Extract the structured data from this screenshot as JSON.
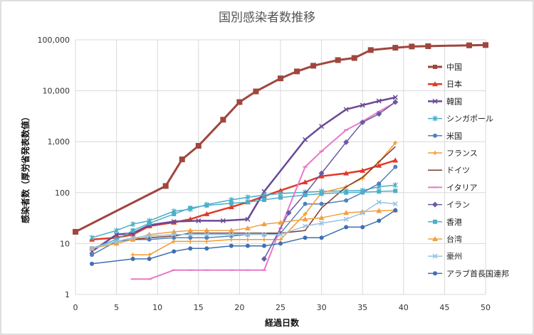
{
  "chart_data": {
    "type": "line",
    "title": "国別感染者数推移",
    "xlabel": "経過日数",
    "ylabel": "感染者数（厚労省発表数値）",
    "xlim": [
      0,
      50
    ],
    "ylim": [
      1,
      100000
    ],
    "y_scale": "log",
    "grid": true,
    "legend_position": "right",
    "x_ticks": [
      "0",
      "5",
      "10",
      "15",
      "20",
      "25",
      "30",
      "35",
      "40",
      "45",
      "50"
    ],
    "y_ticks": [
      "1",
      "10",
      "100",
      "1,000",
      "10,000",
      "100,000"
    ],
    "series": [
      {
        "name": "中国",
        "color": "#a0463e",
        "marker": "square",
        "width": 3,
        "points": [
          [
            0,
            17
          ],
          [
            11,
            135
          ],
          [
            13,
            450
          ],
          [
            15,
            830
          ],
          [
            18,
            2700
          ],
          [
            20,
            6000
          ],
          [
            22,
            9700
          ],
          [
            25,
            17500
          ],
          [
            27,
            24000
          ],
          [
            29,
            31000
          ],
          [
            32,
            40000
          ],
          [
            34,
            44000
          ],
          [
            36,
            63000
          ],
          [
            39,
            70000
          ],
          [
            41,
            74000
          ],
          [
            43,
            75000
          ],
          [
            48,
            78000
          ],
          [
            50,
            79000
          ]
        ]
      },
      {
        "name": "日本",
        "color": "#e03a2a",
        "marker": "triangle",
        "width": 2.5,
        "points": [
          [
            2,
            12
          ],
          [
            5,
            13
          ],
          [
            7,
            15
          ],
          [
            9,
            22
          ],
          [
            12,
            26
          ],
          [
            14,
            30
          ],
          [
            16,
            38
          ],
          [
            19,
            52
          ],
          [
            21,
            65
          ],
          [
            23,
            85
          ],
          [
            25,
            110
          ],
          [
            28,
            160
          ],
          [
            30,
            210
          ],
          [
            33,
            240
          ],
          [
            35,
            270
          ],
          [
            37,
            340
          ],
          [
            39,
            430
          ]
        ]
      },
      {
        "name": "韓国",
        "color": "#6a4a96",
        "marker": "x",
        "width": 2.5,
        "points": [
          [
            2,
            7
          ],
          [
            5,
            15
          ],
          [
            7,
            16
          ],
          [
            9,
            23
          ],
          [
            12,
            27
          ],
          [
            15,
            28
          ],
          [
            18,
            28
          ],
          [
            21,
            30
          ],
          [
            23,
            105
          ],
          [
            28,
            1100
          ],
          [
            30,
            2000
          ],
          [
            33,
            4300
          ],
          [
            35,
            5200
          ],
          [
            37,
            6300
          ],
          [
            39,
            7400
          ]
        ]
      },
      {
        "name": "シンガポール",
        "color": "#4aacc6",
        "marker": "star",
        "width": 1.5,
        "points": [
          [
            2,
            13
          ],
          [
            5,
            18
          ],
          [
            7,
            24
          ],
          [
            9,
            28
          ],
          [
            12,
            43
          ],
          [
            14,
            47
          ],
          [
            16,
            58
          ],
          [
            19,
            72
          ],
          [
            21,
            81
          ],
          [
            23,
            89
          ],
          [
            25,
            96
          ],
          [
            28,
            102
          ],
          [
            30,
            106
          ],
          [
            33,
            108
          ],
          [
            35,
            110
          ],
          [
            37,
            130
          ],
          [
            39,
            140
          ]
        ]
      },
      {
        "name": "米国",
        "color": "#4f81bd",
        "marker": "circle",
        "width": 1.5,
        "points": [
          [
            2,
            6
          ],
          [
            5,
            11
          ],
          [
            7,
            12
          ],
          [
            9,
            12
          ],
          [
            12,
            13
          ],
          [
            14,
            13
          ],
          [
            16,
            13
          ],
          [
            19,
            14
          ],
          [
            21,
            15
          ],
          [
            23,
            15
          ],
          [
            25,
            16
          ],
          [
            28,
            60
          ],
          [
            30,
            60
          ],
          [
            33,
            70
          ],
          [
            35,
            100
          ],
          [
            37,
            150
          ],
          [
            39,
            320
          ]
        ]
      },
      {
        "name": "フランス",
        "color": "#f39a2f",
        "marker": "plus",
        "width": 1.5,
        "points": [
          [
            7,
            6
          ],
          [
            9,
            6
          ],
          [
            12,
            11
          ],
          [
            14,
            11
          ],
          [
            16,
            11
          ],
          [
            19,
            12
          ],
          [
            21,
            12
          ],
          [
            23,
            12
          ],
          [
            25,
            12
          ],
          [
            28,
            38
          ],
          [
            30,
            100
          ],
          [
            33,
            130
          ],
          [
            35,
            190
          ],
          [
            37,
            400
          ],
          [
            39,
            950
          ]
        ]
      },
      {
        "name": "ドイツ",
        "color": "#7a3b2e",
        "marker": "none",
        "width": 1.5,
        "points": [
          [
            7,
            12
          ],
          [
            9,
            13
          ],
          [
            12,
            14
          ],
          [
            14,
            16
          ],
          [
            16,
            16
          ],
          [
            19,
            16
          ],
          [
            21,
            16
          ],
          [
            23,
            16
          ],
          [
            25,
            16
          ],
          [
            28,
            18
          ],
          [
            30,
            50
          ],
          [
            33,
            130
          ],
          [
            35,
            200
          ],
          [
            37,
            400
          ],
          [
            39,
            800
          ]
        ]
      },
      {
        "name": "イタリア",
        "color": "#e879c8",
        "marker": "dash",
        "width": 2,
        "points": [
          [
            7,
            2
          ],
          [
            9,
            2
          ],
          [
            12,
            3
          ],
          [
            14,
            3
          ],
          [
            16,
            3
          ],
          [
            19,
            3
          ],
          [
            21,
            3
          ],
          [
            23,
            3
          ],
          [
            25,
            20
          ],
          [
            28,
            320
          ],
          [
            30,
            650
          ],
          [
            33,
            1700
          ],
          [
            35,
            2500
          ],
          [
            37,
            3900
          ],
          [
            39,
            5900
          ]
        ]
      },
      {
        "name": "イラン",
        "color": "#6a5aa3",
        "marker": "diamond",
        "width": 1.5,
        "points": [
          [
            23,
            5
          ],
          [
            26,
            40
          ],
          [
            28,
            95
          ],
          [
            30,
            240
          ],
          [
            33,
            980
          ],
          [
            35,
            2400
          ],
          [
            37,
            3500
          ],
          [
            39,
            6000
          ]
        ]
      },
      {
        "name": "香港",
        "color": "#4bb0c9",
        "marker": "square",
        "width": 1.5,
        "points": [
          [
            2,
            8
          ],
          [
            5,
            12
          ],
          [
            7,
            18
          ],
          [
            9,
            25
          ],
          [
            12,
            38
          ],
          [
            14,
            50
          ],
          [
            16,
            56
          ],
          [
            19,
            62
          ],
          [
            21,
            65
          ],
          [
            23,
            72
          ],
          [
            25,
            80
          ],
          [
            28,
            90
          ],
          [
            30,
            95
          ],
          [
            33,
            100
          ],
          [
            35,
            102
          ],
          [
            37,
            105
          ],
          [
            39,
            108
          ]
        ]
      },
      {
        "name": "台湾",
        "color": "#f0a040",
        "marker": "triangle",
        "width": 1.5,
        "points": [
          [
            2,
            8
          ],
          [
            5,
            10
          ],
          [
            7,
            12
          ],
          [
            9,
            15
          ],
          [
            12,
            17
          ],
          [
            14,
            18
          ],
          [
            16,
            18
          ],
          [
            19,
            18
          ],
          [
            21,
            20
          ],
          [
            23,
            24
          ],
          [
            25,
            26
          ],
          [
            28,
            30
          ],
          [
            30,
            32
          ],
          [
            33,
            40
          ],
          [
            35,
            42
          ],
          [
            37,
            44
          ],
          [
            39,
            45
          ]
        ]
      },
      {
        "name": "豪州",
        "color": "#9ac2e0",
        "marker": "x",
        "width": 1.5,
        "points": [
          [
            2,
            8
          ],
          [
            5,
            11
          ],
          [
            7,
            13
          ],
          [
            9,
            14
          ],
          [
            12,
            15
          ],
          [
            14,
            15
          ],
          [
            16,
            15
          ],
          [
            19,
            15
          ],
          [
            21,
            15
          ],
          [
            23,
            15
          ],
          [
            25,
            15
          ],
          [
            28,
            22
          ],
          [
            30,
            25
          ],
          [
            33,
            30
          ],
          [
            35,
            40
          ],
          [
            37,
            65
          ],
          [
            39,
            60
          ]
        ]
      },
      {
        "name": "アラブ首長国連邦",
        "color": "#3f6fb0",
        "marker": "circle",
        "width": 1.5,
        "points": [
          [
            2,
            4
          ],
          [
            7,
            5
          ],
          [
            9,
            5
          ],
          [
            12,
            7
          ],
          [
            14,
            8
          ],
          [
            16,
            8
          ],
          [
            19,
            9
          ],
          [
            21,
            9
          ],
          [
            23,
            9
          ],
          [
            25,
            10
          ],
          [
            28,
            13
          ],
          [
            30,
            13
          ],
          [
            33,
            21
          ],
          [
            35,
            21
          ],
          [
            37,
            28
          ],
          [
            39,
            45
          ]
        ]
      }
    ]
  }
}
